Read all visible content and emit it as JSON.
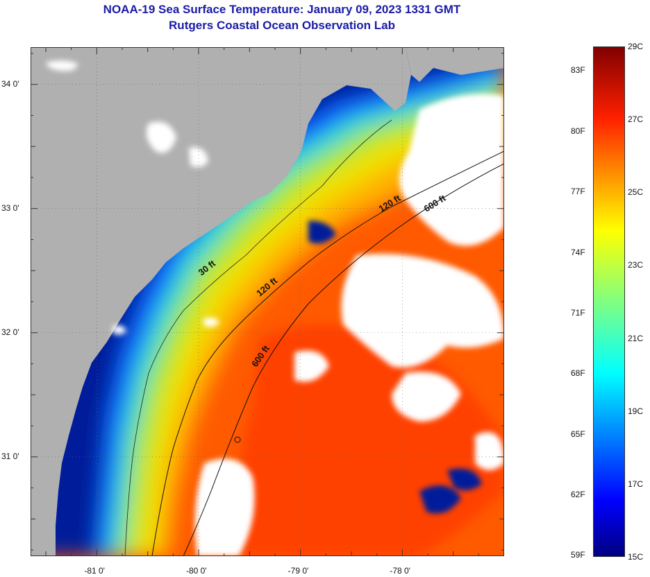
{
  "title_line1": "NOAA-19 Sea Surface Temperature:  January 09, 2023 1331 GMT",
  "title_line2": "Rutgers Coastal Ocean Observation Lab",
  "map": {
    "lat_ticks": [
      {
        "value": 34.0,
        "label": "34 0'"
      },
      {
        "value": 33.0,
        "label": "33 0'"
      },
      {
        "value": 32.0,
        "label": "32 0'"
      },
      {
        "value": 31.0,
        "label": "31 0'"
      }
    ],
    "lon_ticks": [
      {
        "value": -81.0,
        "label": "-81 0'"
      },
      {
        "value": -80.0,
        "label": "-80 0'"
      },
      {
        "value": -79.0,
        "label": "-79 0'"
      },
      {
        "value": -78.0,
        "label": "-78 0'"
      }
    ],
    "lon_range": [
      -81.65,
      -77.0
    ],
    "lat_range": [
      30.2,
      34.3
    ],
    "contours": [
      {
        "label": "30 ft"
      },
      {
        "label": "120 ft"
      },
      {
        "label": "120 ft"
      },
      {
        "label": "600 ft"
      },
      {
        "label": "600 ft"
      }
    ],
    "colors": {
      "land": "#b0b0b0",
      "cloud": "#ffffff",
      "cold": "#00108a",
      "warm": "#ff4a00"
    }
  },
  "colorbar": {
    "range_c": [
      15,
      29
    ],
    "celsius_labels": [
      "29C",
      "27C",
      "25C",
      "23C",
      "21C",
      "19C",
      "17C",
      "15C"
    ],
    "fahrenheit_labels": [
      "83F",
      "80F",
      "77F",
      "74F",
      "71F",
      "68F",
      "65F",
      "62F",
      "59F"
    ]
  }
}
